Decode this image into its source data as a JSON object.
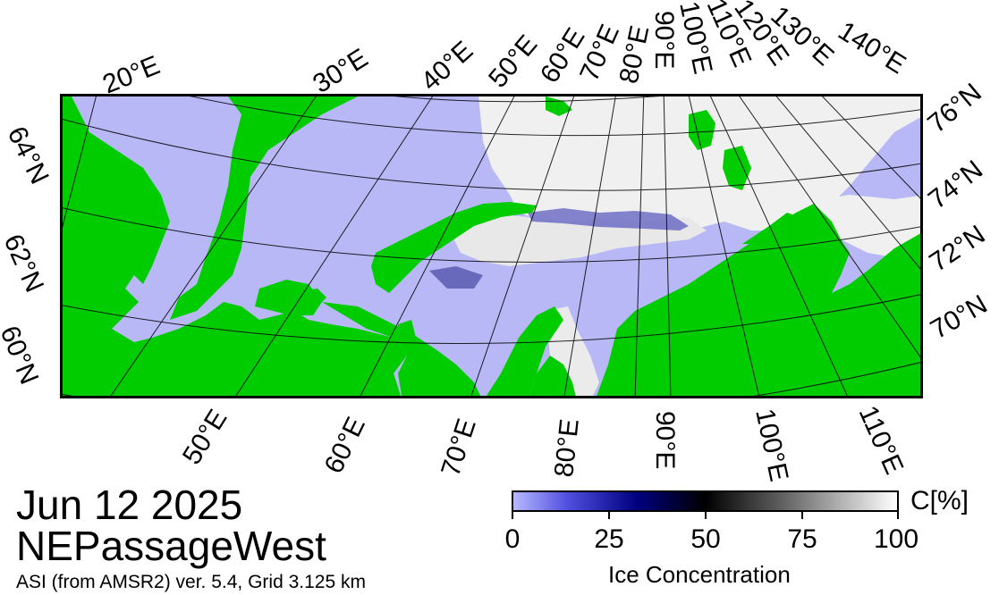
{
  "map": {
    "date": "Jun 12 2025",
    "region": "NEPassageWest",
    "source": "ASI (from AMSR2) ver. 5.4,  Grid 3.125 km",
    "colors": {
      "ocean": "#b8b8f6",
      "land": "#00cc00",
      "ice": "#f2f2f2",
      "grid": "#000000"
    },
    "top_longitude_labels": [
      "20°E",
      "30°E",
      "40°E",
      "50°E",
      "60°E",
      "70°E",
      "80°E",
      "90°E",
      "100°E",
      "110°E",
      "120°E",
      "130°E",
      "140°E"
    ],
    "bottom_longitude_labels": [
      "50°E",
      "60°E",
      "70°E",
      "80°E",
      "90°E",
      "100°E",
      "110°E"
    ],
    "left_latitude_labels": [
      "64°N",
      "62°N",
      "60°N"
    ],
    "right_latitude_labels": [
      "76°N",
      "74°N",
      "72°N",
      "70°N"
    ]
  },
  "colorbar": {
    "title": "Ice Concentration",
    "unit": "C[%]",
    "ticks": [
      "0",
      "25",
      "50",
      "75",
      "100"
    ],
    "range": [
      0,
      100
    ]
  }
}
